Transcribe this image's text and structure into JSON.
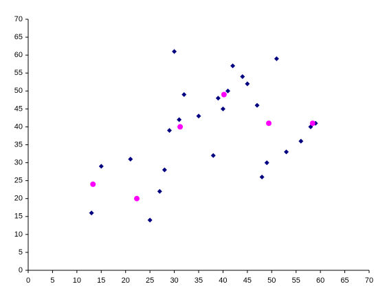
{
  "chart_data": {
    "type": "scatter",
    "xlim": [
      0,
      70
    ],
    "ylim": [
      0,
      70
    ],
    "xticks": [
      0,
      5,
      10,
      15,
      20,
      25,
      30,
      35,
      40,
      45,
      50,
      55,
      60,
      65,
      70
    ],
    "yticks": [
      0,
      5,
      10,
      15,
      20,
      25,
      30,
      35,
      40,
      45,
      50,
      55,
      60,
      65,
      70
    ],
    "grid": false,
    "series": [
      {
        "color": "#000080",
        "marker": "diamond",
        "x": [
          13,
          15,
          21,
          25,
          27,
          28,
          29,
          30,
          31,
          32,
          35,
          38,
          39,
          40,
          41,
          42,
          44,
          45,
          47,
          48,
          49,
          51,
          53,
          56,
          58,
          59
        ],
        "values": [
          16,
          29,
          31,
          14,
          22,
          28,
          39,
          61,
          42,
          49,
          43,
          32,
          48,
          45,
          50,
          57,
          54,
          52,
          46,
          26,
          30,
          59,
          33,
          36,
          40,
          41
        ]
      },
      {
        "color": "#ff00ff",
        "marker": "circle",
        "x": [
          13.3,
          22.3,
          31.2,
          40.2,
          49.4,
          58.4
        ],
        "values": [
          24,
          20,
          40,
          49,
          41,
          41
        ]
      }
    ]
  }
}
